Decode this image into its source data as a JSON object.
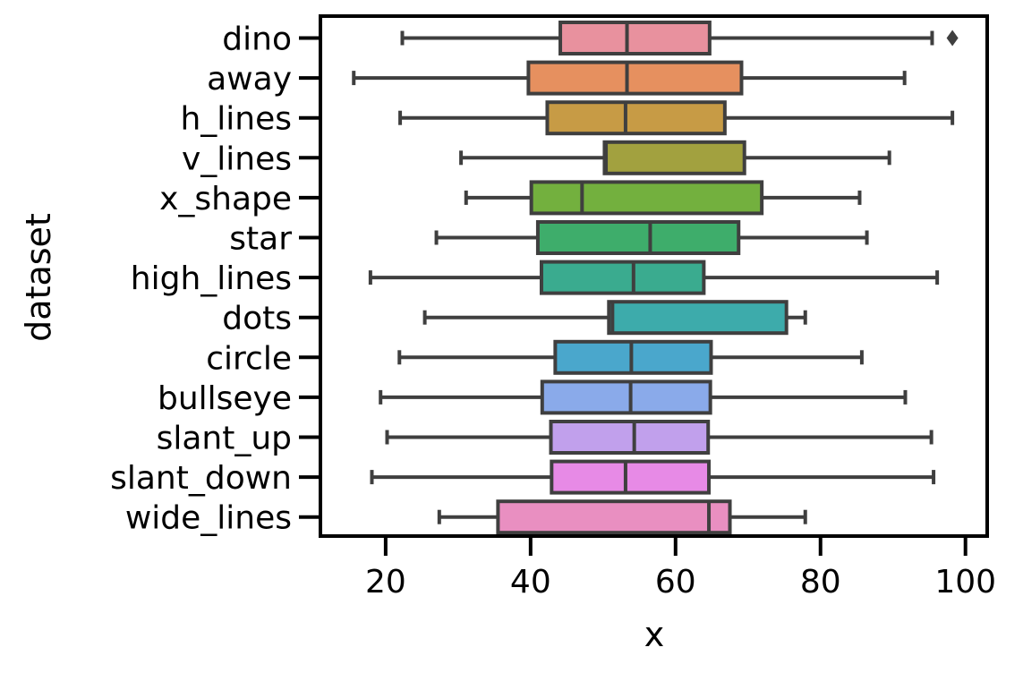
{
  "chart_data": {
    "type": "boxplot",
    "orientation": "horizontal",
    "title": "",
    "xlabel": "x",
    "ylabel": "dataset",
    "xlim": [
      11,
      103
    ],
    "xticks": [
      20,
      40,
      60,
      80,
      100
    ],
    "grid": false,
    "legend": "none",
    "categories": [
      "dino",
      "away",
      "h_lines",
      "v_lines",
      "x_shape",
      "star",
      "high_lines",
      "dots",
      "circle",
      "bullseye",
      "slant_up",
      "slant_down",
      "wide_lines"
    ],
    "boxes": [
      {
        "category": "dino",
        "whisker_low": 22.3,
        "q1": 44.1,
        "median": 53.3,
        "q3": 64.7,
        "whisker_high": 95.4,
        "outliers": [
          98.2
        ],
        "color": "#e8919e"
      },
      {
        "category": "away",
        "whisker_low": 15.6,
        "q1": 39.7,
        "median": 53.3,
        "q3": 69.1,
        "whisker_high": 91.6,
        "outliers": [],
        "color": "#e6905f"
      },
      {
        "category": "h_lines",
        "whisker_low": 22.0,
        "q1": 42.3,
        "median": 53.1,
        "q3": 66.8,
        "whisker_high": 98.2,
        "outliers": [],
        "color": "#c79b45"
      },
      {
        "category": "v_lines",
        "whisker_low": 30.4,
        "q1": 50.2,
        "median": 50.4,
        "q3": 69.5,
        "whisker_high": 89.5,
        "outliers": [],
        "color": "#a2a13f"
      },
      {
        "category": "x_shape",
        "whisker_low": 31.1,
        "q1": 40.1,
        "median": 47.1,
        "q3": 71.9,
        "whisker_high": 85.4,
        "outliers": [],
        "color": "#73b03e"
      },
      {
        "category": "star",
        "whisker_low": 27.0,
        "q1": 41.0,
        "median": 56.5,
        "q3": 68.7,
        "whisker_high": 86.4,
        "outliers": [],
        "color": "#3ead6b"
      },
      {
        "category": "high_lines",
        "whisker_low": 17.9,
        "q1": 41.5,
        "median": 54.2,
        "q3": 63.9,
        "whisker_high": 96.1,
        "outliers": [],
        "color": "#3aab8f"
      },
      {
        "category": "dots",
        "whisker_low": 25.4,
        "q1": 50.8,
        "median": 51.3,
        "q3": 75.3,
        "whisker_high": 77.9,
        "outliers": [],
        "color": "#3dabab"
      },
      {
        "category": "circle",
        "whisker_low": 21.9,
        "q1": 43.4,
        "median": 53.9,
        "q3": 64.9,
        "whisker_high": 85.7,
        "outliers": [],
        "color": "#4aa7cc"
      },
      {
        "category": "bullseye",
        "whisker_low": 19.3,
        "q1": 41.6,
        "median": 53.8,
        "q3": 64.8,
        "whisker_high": 91.7,
        "outliers": [],
        "color": "#8aaaea"
      },
      {
        "category": "slant_up",
        "whisker_low": 20.2,
        "q1": 42.8,
        "median": 54.3,
        "q3": 64.5,
        "whisker_high": 95.3,
        "outliers": [],
        "color": "#c1a0ec"
      },
      {
        "category": "slant_down",
        "whisker_low": 18.1,
        "q1": 42.9,
        "median": 53.1,
        "q3": 64.6,
        "whisker_high": 95.6,
        "outliers": [],
        "color": "#e78ae6"
      },
      {
        "category": "wide_lines",
        "whisker_low": 27.4,
        "q1": 35.5,
        "median": 64.6,
        "q3": 67.5,
        "whisker_high": 77.9,
        "outliers": [],
        "color": "#e98fc1"
      }
    ]
  }
}
